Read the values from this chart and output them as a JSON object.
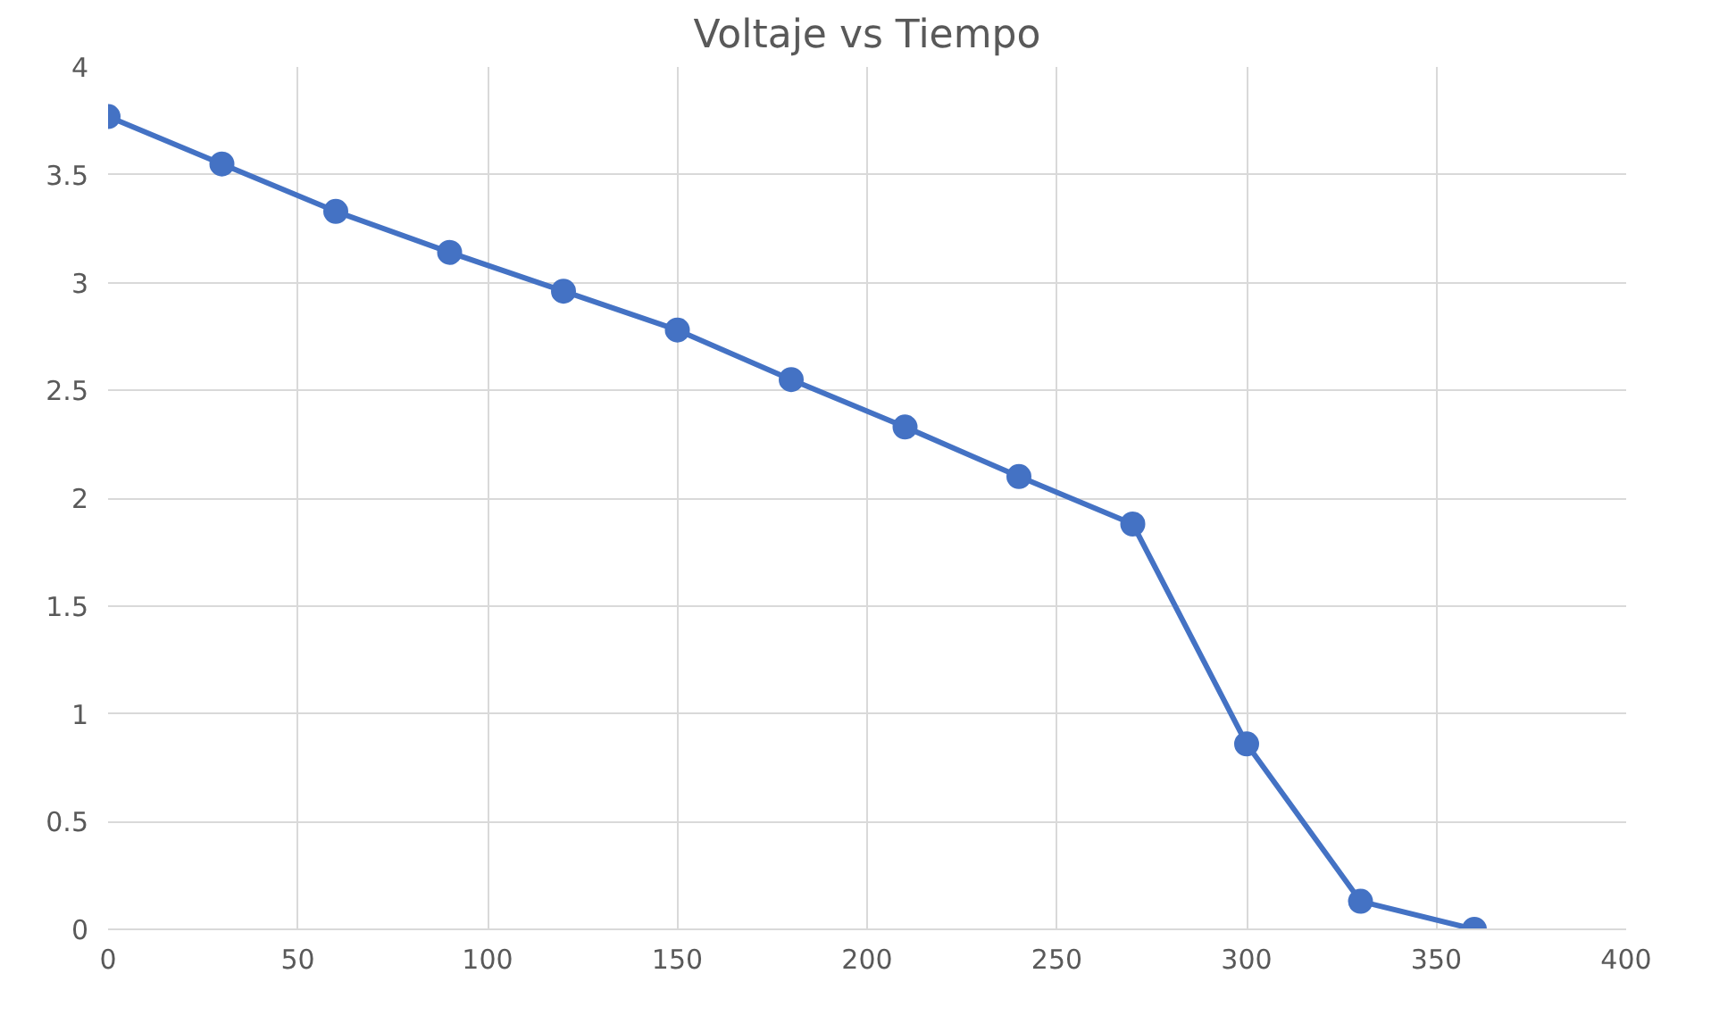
{
  "chart_data": {
    "type": "line",
    "title": "Voltaje vs Tiempo",
    "x": [
      0,
      30,
      60,
      90,
      120,
      150,
      180,
      210,
      240,
      270,
      300,
      330,
      360
    ],
    "series": [
      {
        "color": "#4472c4",
        "values": [
          3.77,
          3.55,
          3.33,
          3.14,
          2.96,
          2.78,
          2.55,
          2.33,
          2.1,
          1.88,
          0.86,
          0.13,
          0
        ]
      }
    ],
    "xlim": [
      0,
      400
    ],
    "xticks": [
      0,
      50,
      100,
      150,
      200,
      250,
      300,
      350,
      400
    ],
    "ylim": [
      0,
      4
    ],
    "yticks": [
      0,
      0.5,
      1,
      1.5,
      2,
      2.5,
      3,
      3.5,
      4
    ],
    "grid": true,
    "marker": "circle",
    "line_style": "solid"
  }
}
